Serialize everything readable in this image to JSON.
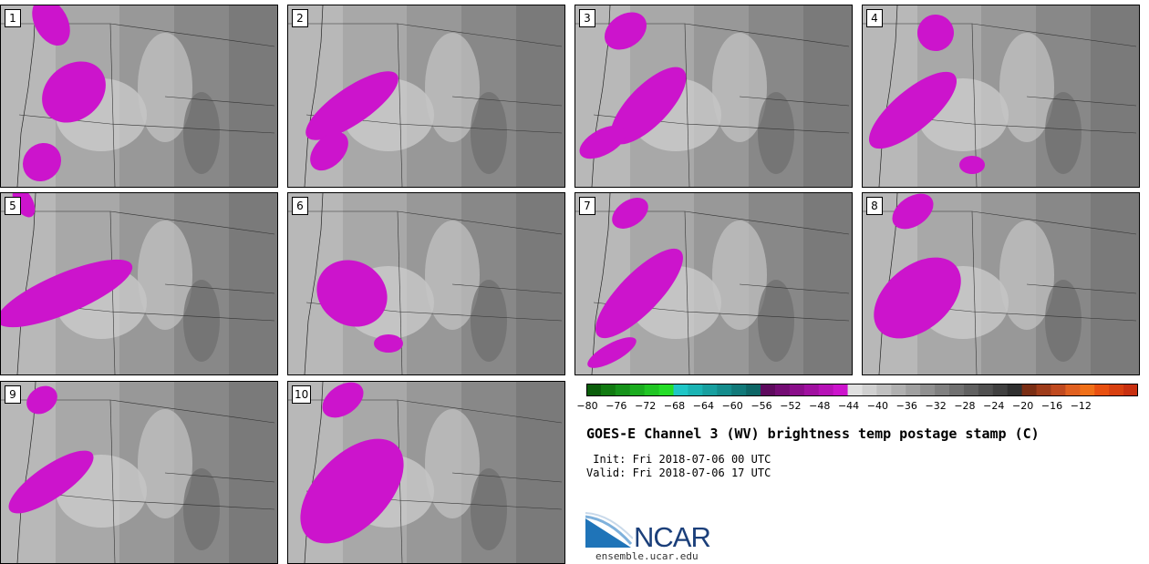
{
  "panels": [
    {
      "label": "1"
    },
    {
      "label": "2"
    },
    {
      "label": "3"
    },
    {
      "label": "4"
    },
    {
      "label": "5"
    },
    {
      "label": "6"
    },
    {
      "label": "7"
    },
    {
      "label": "8"
    },
    {
      "label": "9"
    },
    {
      "label": "10"
    }
  ],
  "colorbar": {
    "ticks": [
      "−80",
      "−76",
      "−72",
      "−68",
      "−64",
      "−60",
      "−56",
      "−52",
      "−48",
      "−44",
      "−40",
      "−36",
      "−32",
      "−28",
      "−24",
      "−20",
      "−16",
      "−12"
    ],
    "colors": [
      "#0b5e0b",
      "#117a11",
      "#16921a",
      "#1bac1f",
      "#21c524",
      "#25dd28",
      "#1fc6c6",
      "#1ab3b3",
      "#179f9f",
      "#148c8c",
      "#117979",
      "#0e6666",
      "#5e0a5e",
      "#740c74",
      "#8a0e8a",
      "#a010a0",
      "#b612b6",
      "#cc14cc",
      "#e0e0e0",
      "#d0d0d0",
      "#c0c0c0",
      "#b0b0b0",
      "#a0a0a0",
      "#909090",
      "#808080",
      "#707070",
      "#606060",
      "#505050",
      "#404040",
      "#303030",
      "#7a2e14",
      "#9e3c1a",
      "#c04a1f",
      "#e06020",
      "#f07018",
      "#e85010",
      "#d84010",
      "#c83010"
    ]
  },
  "title": "GOES-E Channel 3 (WV) brightness temp postage stamp (C)",
  "init": " Init: Fri 2018-07-06 00 UTC",
  "valid": "Valid: Fri 2018-07-06 17 UTC",
  "logo": {
    "text": "NCAR",
    "site": "ensemble.ucar.edu"
  }
}
